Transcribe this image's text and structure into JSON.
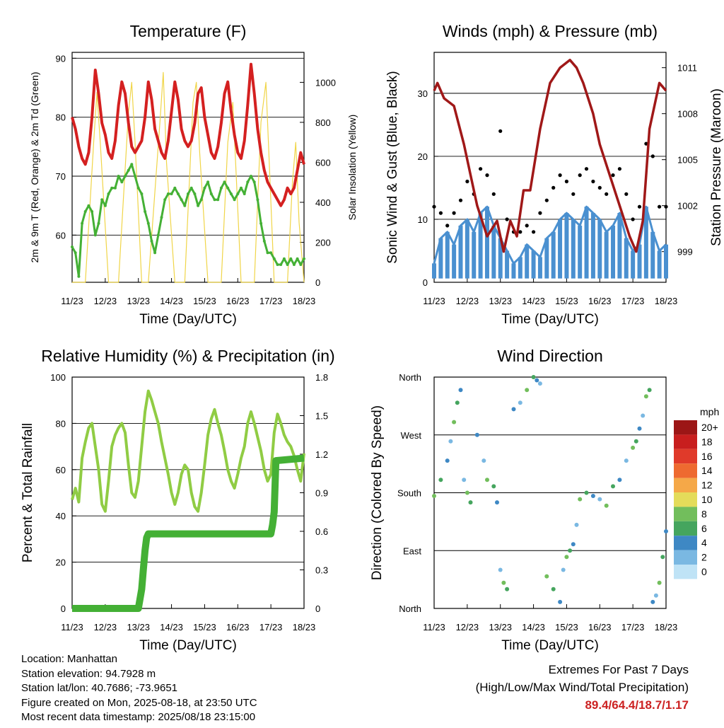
{
  "station": {
    "location": "Location: Manhattan",
    "elevation": "Station elevation: 94.7928 m",
    "latlon": "Station lat/lon: 40.7686; -73.9651",
    "created": "Figure created on Mon, 2025-08-18, at 23:50 UTC",
    "latest": "Most recent data timestamp: 2025/08/18 23:15:00"
  },
  "extremes": {
    "title": "Extremes For Past 7 Days",
    "subtitle": "(High/Low/Max Wind/Total Precipitation)",
    "values": "89.4/64.4/18.7/1.17"
  },
  "colors": {
    "temp": "#d42020",
    "dewpoint": "#44b035",
    "solar": "#f0d548",
    "gust": "#000000",
    "wind": "#4a90d0",
    "pressure": "#a01818",
    "rh": "#90cc44",
    "precip": "#44b035"
  },
  "chart_data": [
    {
      "type": "line",
      "title": "Temperature (F)",
      "xlabel": "Time (Day/UTC)",
      "ylabel": "2m & 9m T (Red, Orange) & 2m Td (Green)",
      "ylabel_right": "Solar Insolation (Yellow)",
      "x_ticks": [
        "11/23",
        "12/23",
        "13/23",
        "14/23",
        "15/23",
        "16/23",
        "17/23",
        "18/23"
      ],
      "ylim": [
        52,
        91
      ],
      "y_ticks": [
        60,
        70,
        80,
        90
      ],
      "ylim_right": [
        0,
        1150
      ],
      "y_ticks_right": [
        0,
        200,
        400,
        600,
        800,
        1000
      ],
      "grid": "horizontal",
      "series": [
        {
          "x": [
            0,
            0.1,
            0.2,
            0.3,
            0.4,
            0.5,
            0.6,
            0.7,
            0.8,
            0.9,
            1.0,
            1.1,
            1.2,
            1.3,
            1.4,
            1.5,
            1.6,
            1.7,
            1.8,
            1.9,
            2.0,
            2.1,
            2.2,
            2.3,
            2.4,
            2.5,
            2.6,
            2.7,
            2.8,
            2.9,
            3.0,
            3.1,
            3.2,
            3.3,
            3.4,
            3.5,
            3.6,
            3.7,
            3.8,
            3.9,
            4.0,
            4.1,
            4.2,
            4.3,
            4.4,
            4.5,
            4.6,
            4.7,
            4.8,
            4.9,
            5.0,
            5.1,
            5.2,
            5.3,
            5.4,
            5.5,
            5.6,
            5.7,
            5.8,
            5.9,
            6.0,
            6.1,
            6.2,
            6.3,
            6.4,
            6.5,
            6.6,
            6.7,
            6.8,
            6.9,
            7.0
          ],
          "y": [
            80,
            78,
            75,
            73,
            72,
            74,
            80,
            88,
            84,
            79,
            77,
            74,
            73,
            76,
            82,
            86,
            84,
            79,
            75,
            74,
            75,
            76,
            80,
            86,
            83,
            78,
            76,
            74,
            73,
            76,
            81,
            86,
            83,
            78,
            76,
            75,
            76,
            79,
            84,
            85,
            80,
            77,
            74,
            73,
            75,
            79,
            84,
            86,
            81,
            77,
            74,
            73,
            76,
            82,
            89,
            84,
            78,
            74,
            71,
            69,
            68,
            67,
            66,
            65,
            66,
            68,
            67,
            68,
            71,
            74,
            72
          ]
        },
        {
          "x": [
            0,
            0.1,
            0.2,
            0.3,
            0.4,
            0.5,
            0.6,
            0.7,
            0.8,
            0.9,
            1.0,
            1.1,
            1.2,
            1.3,
            1.4,
            1.5,
            1.6,
            1.7,
            1.8,
            1.9,
            2.0,
            2.1,
            2.2,
            2.3,
            2.4,
            2.5,
            2.6,
            2.7,
            2.8,
            2.9,
            3.0,
            3.1,
            3.2,
            3.3,
            3.4,
            3.5,
            3.6,
            3.7,
            3.8,
            3.9,
            4.0,
            4.1,
            4.2,
            4.3,
            4.4,
            4.5,
            4.6,
            4.7,
            4.8,
            4.9,
            5.0,
            5.1,
            5.2,
            5.3,
            5.4,
            5.5,
            5.6,
            5.7,
            5.8,
            5.9,
            6.0,
            6.1,
            6.2,
            6.3,
            6.4,
            6.5,
            6.6,
            6.7,
            6.8,
            6.9,
            7.0
          ],
          "y": [
            58,
            57,
            53,
            62,
            64,
            65,
            64,
            60,
            62,
            66,
            65,
            67,
            68,
            68,
            70,
            69,
            70,
            71,
            72,
            70,
            68,
            67,
            64,
            62,
            59,
            57,
            60,
            63,
            66,
            67,
            67,
            68,
            67,
            66,
            65,
            67,
            68,
            67,
            65,
            66,
            68,
            69,
            67,
            66,
            66,
            68,
            69,
            68,
            67,
            66,
            67,
            68,
            67,
            69,
            70,
            69,
            66,
            62,
            59,
            57,
            57,
            56,
            55,
            55,
            56,
            55,
            56,
            55,
            56,
            55,
            56
          ]
        },
        {
          "x": [
            0,
            0.4,
            0.65,
            0.75,
            0.85,
            1.1,
            1.4,
            1.7,
            1.8,
            1.9,
            2.1,
            2.3,
            2.65,
            2.75,
            2.85,
            3.1,
            3.4,
            3.65,
            3.75,
            3.85,
            4.1,
            4.5,
            4.7,
            4.85,
            4.95,
            5.1,
            5.5,
            5.7,
            5.85,
            5.95,
            6.1,
            6.5,
            6.65,
            6.75,
            6.85,
            7.0
          ],
          "y": [
            0,
            0,
            700,
            950,
            700,
            0,
            0,
            850,
            1000,
            700,
            0,
            0,
            800,
            1050,
            600,
            0,
            0,
            900,
            1000,
            650,
            0,
            0,
            700,
            900,
            550,
            0,
            0,
            800,
            1000,
            600,
            0,
            0,
            500,
            700,
            300,
            0
          ]
        }
      ]
    },
    {
      "type": "line",
      "title": "Winds (mph) & Pressure (mb)",
      "xlabel": "Time (Day/UTC)",
      "ylabel": "Sonic Wind & Gust (Blue, Black)",
      "ylabel_right": "Station Pressure (Maroon)",
      "x_ticks": [
        "11/23",
        "12/23",
        "13/23",
        "14/23",
        "15/23",
        "16/23",
        "17/23",
        "18/23"
      ],
      "ylim": [
        0,
        36.5
      ],
      "y_ticks": [
        0,
        10,
        20,
        30
      ],
      "ylim_right": [
        997,
        1012
      ],
      "y_ticks_right": [
        999,
        1002,
        1005,
        1008,
        1011
      ],
      "grid": "horizontal",
      "series": [
        {
          "x": [
            0,
            0.2,
            0.4,
            0.6,
            0.8,
            1.0,
            1.2,
            1.4,
            1.6,
            1.8,
            2.0,
            2.2,
            2.4,
            2.6,
            2.8,
            3.0,
            3.2,
            3.4,
            3.6,
            3.8,
            4.0,
            4.2,
            4.4,
            4.6,
            4.8,
            5.0,
            5.2,
            5.4,
            5.6,
            5.8,
            6.0,
            6.2,
            6.4,
            6.6,
            6.8,
            7.0
          ],
          "y": [
            3,
            7,
            8,
            6,
            9,
            10,
            8,
            11,
            12,
            9,
            7,
            5,
            3,
            4,
            6,
            5,
            4,
            7,
            8,
            10,
            11,
            10,
            9,
            12,
            11,
            10,
            8,
            9,
            11,
            7,
            5,
            6,
            12,
            8,
            5,
            6
          ]
        },
        {
          "x": [
            0,
            0.2,
            0.4,
            0.6,
            0.8,
            1.0,
            1.2,
            1.4,
            1.6,
            1.8,
            2.0,
            2.2,
            2.4,
            2.6,
            2.8,
            3.0,
            3.2,
            3.4,
            3.6,
            3.8,
            4.0,
            4.2,
            4.4,
            4.6,
            4.8,
            5.0,
            5.2,
            5.4,
            5.6,
            5.8,
            6.0,
            6.2,
            6.4,
            6.6,
            6.8,
            7.0
          ],
          "y": [
            12,
            11,
            9,
            11,
            13,
            16,
            14,
            18,
            17,
            14,
            24,
            10,
            8,
            8,
            9,
            8,
            11,
            13,
            15,
            17,
            16,
            14,
            17,
            18,
            16,
            15,
            14,
            17,
            18,
            14,
            10,
            12,
            22,
            20,
            12,
            12
          ]
        },
        {
          "x": [
            0,
            0.1,
            0.3,
            0.6,
            0.9,
            1.1,
            1.3,
            1.6,
            1.9,
            2.1,
            2.3,
            2.5,
            2.7,
            2.9,
            3.2,
            3.5,
            3.8,
            4.1,
            4.3,
            4.5,
            4.8,
            5.0,
            5.3,
            5.6,
            5.9,
            6.1,
            6.3,
            6.5,
            6.7,
            6.8,
            7.0
          ],
          "y": [
            1009.5,
            1010,
            1009,
            1008.5,
            1006,
            1004,
            1002,
            1000,
            1001,
            999,
            1001,
            1000,
            1003,
            1003,
            1007,
            1010,
            1011,
            1011.5,
            1011,
            1010,
            1008,
            1006,
            1004,
            1002,
            1000,
            999,
            1001,
            1007,
            1009,
            1010,
            1009.5
          ]
        }
      ]
    },
    {
      "type": "line",
      "title": "Relative Humidity (%) & Precipitation (in)",
      "xlabel": "Time (Day/UTC)",
      "ylabel": "Percent & Total Rainfall",
      "x_ticks": [
        "11/23",
        "12/23",
        "13/23",
        "14/23",
        "15/23",
        "16/23",
        "17/23",
        "18/23"
      ],
      "ylim": [
        0,
        100
      ],
      "y_ticks": [
        0,
        20,
        40,
        60,
        80,
        100
      ],
      "ylim_right": [
        0,
        1.8
      ],
      "y_ticks_right": [
        0.0,
        0.3,
        0.6,
        0.9,
        1.2,
        1.5,
        1.8
      ],
      "grid": "horizontal",
      "series": [
        {
          "x": [
            0,
            0.1,
            0.2,
            0.3,
            0.4,
            0.5,
            0.6,
            0.7,
            0.8,
            0.9,
            1.0,
            1.1,
            1.2,
            1.3,
            1.4,
            1.5,
            1.6,
            1.7,
            1.8,
            1.9,
            2.0,
            2.1,
            2.2,
            2.3,
            2.4,
            2.5,
            2.6,
            2.7,
            2.8,
            2.9,
            3.0,
            3.1,
            3.2,
            3.3,
            3.4,
            3.5,
            3.6,
            3.7,
            3.8,
            3.9,
            4.0,
            4.1,
            4.2,
            4.3,
            4.4,
            4.5,
            4.6,
            4.7,
            4.8,
            4.9,
            5.0,
            5.1,
            5.2,
            5.3,
            5.4,
            5.5,
            5.6,
            5.7,
            5.8,
            5.9,
            6.0,
            6.1,
            6.2,
            6.3,
            6.4,
            6.5,
            6.6,
            6.7,
            6.8,
            6.9,
            7.0
          ],
          "y": [
            47,
            52,
            46,
            65,
            72,
            78,
            80,
            70,
            60,
            45,
            42,
            55,
            70,
            75,
            78,
            80,
            76,
            62,
            50,
            48,
            55,
            70,
            85,
            94,
            90,
            85,
            80,
            72,
            65,
            58,
            50,
            45,
            50,
            58,
            62,
            60,
            50,
            44,
            42,
            50,
            62,
            75,
            82,
            86,
            80,
            75,
            68,
            60,
            55,
            52,
            58,
            65,
            70,
            80,
            85,
            80,
            74,
            68,
            60,
            55,
            58,
            76,
            84,
            80,
            75,
            72,
            70,
            66,
            60,
            55,
            67
          ]
        },
        {
          "x": [
            0,
            2.0,
            2.1,
            2.15,
            2.2,
            2.25,
            2.3,
            6.0,
            6.05,
            6.1,
            6.15,
            7.0
          ],
          "y": [
            0,
            0,
            0.15,
            0.3,
            0.45,
            0.55,
            0.58,
            0.58,
            0.65,
            0.75,
            1.15,
            1.17
          ]
        }
      ]
    },
    {
      "type": "scatter",
      "title": "Wind Direction",
      "xlabel": "Time (Day/UTC)",
      "ylabel": "Direction (Colored By Speed)",
      "x_ticks": [
        "11/23",
        "12/23",
        "13/23",
        "14/23",
        "15/23",
        "16/23",
        "17/23",
        "18/23"
      ],
      "y_ticks": [
        "North",
        "East",
        "South",
        "West",
        "North"
      ],
      "ylim": [
        0,
        360
      ],
      "grid": "horizontal",
      "legend_title": "mph",
      "legend_labels": [
        "20+",
        "18",
        "16",
        "14",
        "12",
        "10",
        "8",
        "6",
        "4",
        "2",
        "0"
      ],
      "legend_colors": [
        "#9c1616",
        "#c81e1e",
        "#e03a2a",
        "#ee6a30",
        "#f5a848",
        "#e4dc5a",
        "#72be5c",
        "#45a55e",
        "#3e88c4",
        "#7ab8e2",
        "#bfe3f6"
      ],
      "series": [
        {
          "x": [
            0,
            0.2,
            0.4,
            0.5,
            0.6,
            0.7,
            0.8,
            0.9,
            1.0,
            1.1,
            1.3,
            1.5,
            1.6,
            1.8,
            1.9,
            2.0,
            2.1,
            2.2,
            2.4,
            2.6,
            2.8,
            3.0,
            3.1,
            3.2,
            3.4,
            3.6,
            3.8,
            3.9,
            4.0,
            4.1,
            4.2,
            4.3,
            4.4,
            4.6,
            4.8,
            5.0,
            5.2,
            5.4,
            5.6,
            5.8,
            6.0,
            6.1,
            6.2,
            6.3,
            6.4,
            6.5,
            6.6,
            6.7,
            6.8,
            6.9,
            7.0
          ],
          "y": [
            175,
            200,
            230,
            260,
            290,
            320,
            340,
            200,
            180,
            165,
            270,
            230,
            200,
            190,
            165,
            60,
            40,
            30,
            310,
            320,
            340,
            360,
            355,
            350,
            50,
            30,
            10,
            60,
            80,
            90,
            100,
            130,
            170,
            180,
            175,
            170,
            160,
            190,
            200,
            230,
            250,
            260,
            280,
            300,
            330,
            340,
            10,
            20,
            40,
            80,
            120
          ]
        }
      ]
    }
  ]
}
